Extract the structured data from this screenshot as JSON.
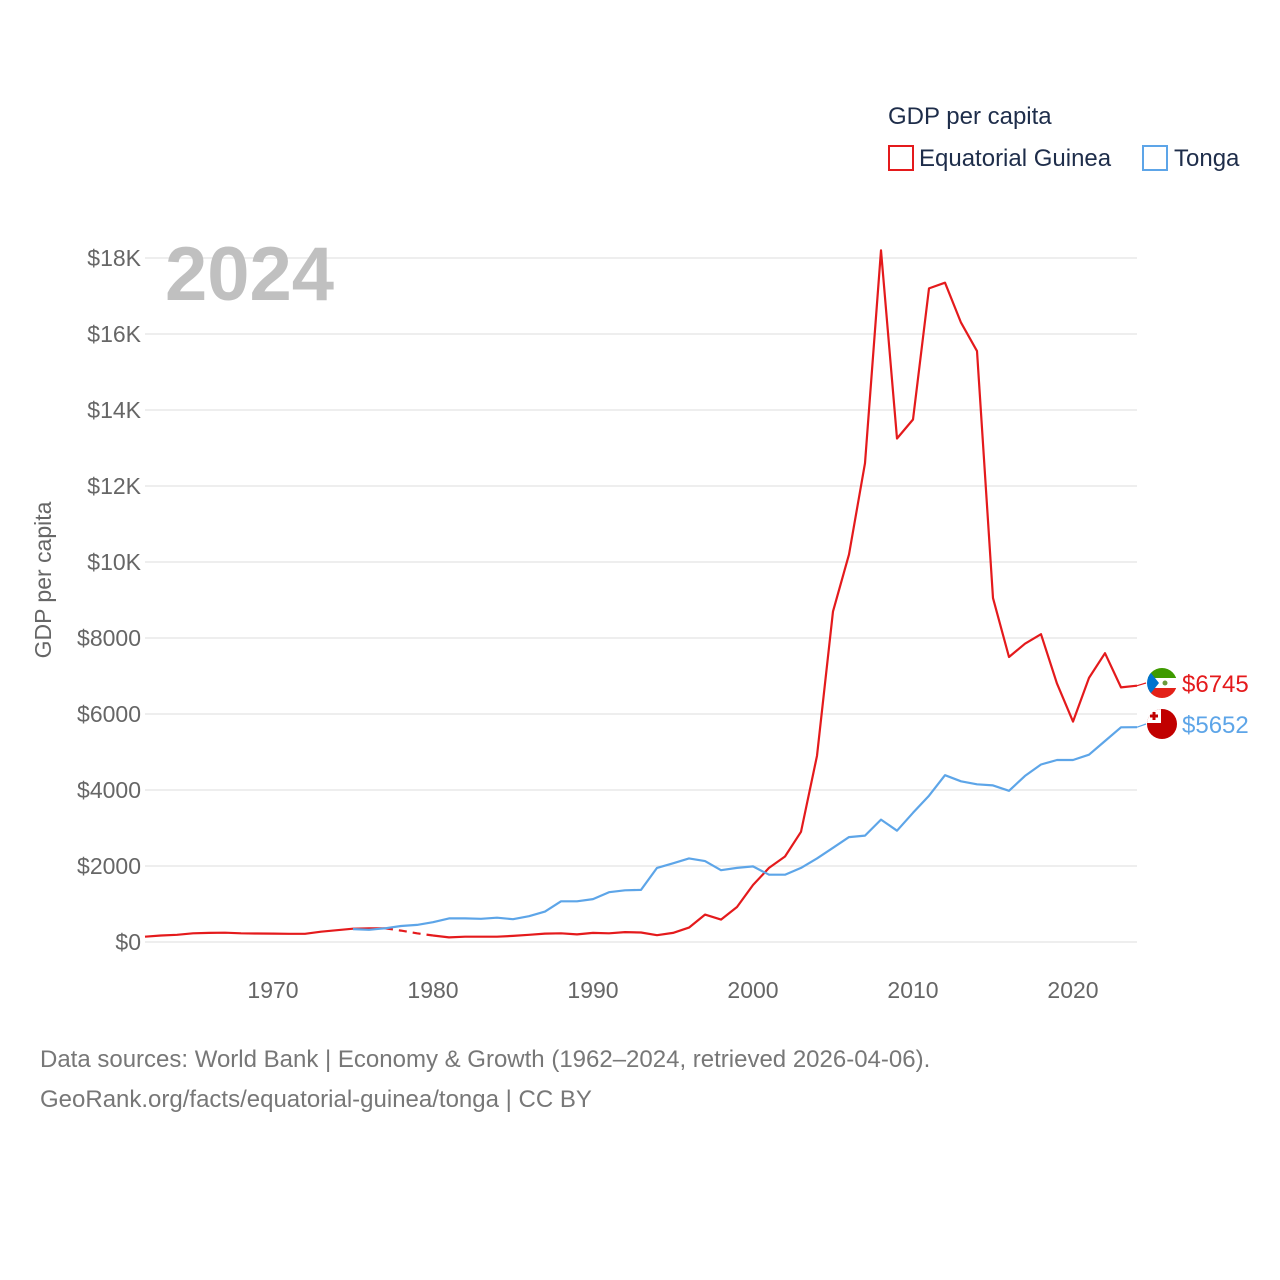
{
  "chart_data": {
    "type": "line",
    "title": "GDP per capita",
    "ylabel": "GDP per capita",
    "xlabel": "",
    "year_label": "2024",
    "xlim": [
      1962,
      2024
    ],
    "ylim": [
      0,
      18000
    ],
    "x_ticks": [
      {
        "value": 1970,
        "label": "1970"
      },
      {
        "value": 1980,
        "label": "1980"
      },
      {
        "value": 1990,
        "label": "1990"
      },
      {
        "value": 2000,
        "label": "2000"
      },
      {
        "value": 2010,
        "label": "2010"
      },
      {
        "value": 2020,
        "label": "2020"
      }
    ],
    "y_ticks": [
      {
        "value": 0,
        "label": "$0"
      },
      {
        "value": 2000,
        "label": "$2000"
      },
      {
        "value": 4000,
        "label": "$4000"
      },
      {
        "value": 6000,
        "label": "$6000"
      },
      {
        "value": 8000,
        "label": "$8000"
      },
      {
        "value": 10000,
        "label": "$10K"
      },
      {
        "value": 12000,
        "label": "$12K"
      },
      {
        "value": 14000,
        "label": "$14K"
      },
      {
        "value": 16000,
        "label": "$16K"
      },
      {
        "value": 18000,
        "label": "$18K"
      }
    ],
    "grid": true,
    "legend_position": "top-right",
    "series": [
      {
        "name": "Equatorial Guinea",
        "color": "#e41a1c",
        "end_label": "$6745",
        "flag_icon": "equatorial-guinea-flag-icon",
        "segments": [
          {
            "style": "solid",
            "points": [
              [
                1962,
                140
              ],
              [
                1963,
                170
              ],
              [
                1964,
                190
              ],
              [
                1965,
                230
              ],
              [
                1966,
                240
              ],
              [
                1967,
                245
              ],
              [
                1968,
                230
              ],
              [
                1969,
                225
              ],
              [
                1970,
                220
              ],
              [
                1971,
                215
              ],
              [
                1972,
                215
              ],
              [
                1973,
                270
              ],
              [
                1974,
                310
              ],
              [
                1975,
                350
              ],
              [
                1976,
                360
              ],
              [
                1977,
                360
              ]
            ]
          },
          {
            "style": "dashed",
            "points": [
              [
                1977,
                360
              ],
              [
                1978,
                300
              ],
              [
                1979,
                230
              ],
              [
                1980,
                170
              ]
            ]
          },
          {
            "style": "solid",
            "points": [
              [
                1980,
                170
              ],
              [
                1981,
                120
              ],
              [
                1982,
                140
              ],
              [
                1983,
                140
              ],
              [
                1984,
                140
              ],
              [
                1985,
                160
              ],
              [
                1986,
                190
              ],
              [
                1987,
                220
              ],
              [
                1988,
                230
              ],
              [
                1989,
                200
              ],
              [
                1990,
                240
              ],
              [
                1991,
                230
              ],
              [
                1992,
                260
              ],
              [
                1993,
                250
              ],
              [
                1994,
                180
              ],
              [
                1995,
                240
              ],
              [
                1996,
                380
              ],
              [
                1997,
                720
              ],
              [
                1998,
                590
              ],
              [
                1999,
                920
              ],
              [
                2000,
                1500
              ],
              [
                2001,
                1950
              ],
              [
                2002,
                2250
              ],
              [
                2003,
                2900
              ],
              [
                2004,
                4900
              ],
              [
                2005,
                8700
              ],
              [
                2006,
                10200
              ],
              [
                2007,
                12600
              ],
              [
                2008,
                18200
              ],
              [
                2009,
                13250
              ],
              [
                2010,
                13750
              ],
              [
                2011,
                17200
              ],
              [
                2012,
                17350
              ],
              [
                2013,
                16300
              ],
              [
                2014,
                15550
              ],
              [
                2015,
                9050
              ],
              [
                2016,
                7500
              ],
              [
                2017,
                7850
              ],
              [
                2018,
                8100
              ],
              [
                2019,
                6800
              ],
              [
                2020,
                5800
              ],
              [
                2021,
                6950
              ],
              [
                2022,
                7600
              ],
              [
                2023,
                6700
              ],
              [
                2024,
                6745
              ]
            ]
          }
        ]
      },
      {
        "name": "Tonga",
        "color": "#5da5e8",
        "end_label": "$5652",
        "flag_icon": "tonga-flag-icon",
        "segments": [
          {
            "style": "solid",
            "points": [
              [
                1975,
                340
              ],
              [
                1976,
                320
              ],
              [
                1977,
                360
              ],
              [
                1978,
                420
              ],
              [
                1979,
                450
              ],
              [
                1980,
                520
              ],
              [
                1981,
                620
              ],
              [
                1982,
                620
              ],
              [
                1983,
                610
              ],
              [
                1984,
                640
              ],
              [
                1985,
                600
              ],
              [
                1986,
                680
              ],
              [
                1987,
                800
              ],
              [
                1988,
                1070
              ],
              [
                1989,
                1070
              ],
              [
                1990,
                1130
              ],
              [
                1991,
                1310
              ],
              [
                1992,
                1360
              ],
              [
                1993,
                1370
              ],
              [
                1994,
                1950
              ],
              [
                1995,
                2070
              ],
              [
                1996,
                2200
              ],
              [
                1997,
                2130
              ],
              [
                1998,
                1890
              ],
              [
                1999,
                1950
              ],
              [
                2000,
                1990
              ],
              [
                2001,
                1770
              ],
              [
                2002,
                1770
              ],
              [
                2003,
                1950
              ],
              [
                2004,
                2200
              ],
              [
                2005,
                2480
              ],
              [
                2006,
                2760
              ],
              [
                2007,
                2800
              ],
              [
                2008,
                3220
              ],
              [
                2009,
                2930
              ],
              [
                2010,
                3400
              ],
              [
                2011,
                3850
              ],
              [
                2012,
                4390
              ],
              [
                2013,
                4230
              ],
              [
                2014,
                4150
              ],
              [
                2015,
                4120
              ],
              [
                2016,
                3980
              ],
              [
                2017,
                4370
              ],
              [
                2018,
                4670
              ],
              [
                2019,
                4790
              ],
              [
                2020,
                4790
              ],
              [
                2021,
                4930
              ],
              [
                2022,
                5290
              ],
              [
                2023,
                5650
              ],
              [
                2024,
                5652
              ]
            ]
          }
        ]
      }
    ]
  },
  "footer": {
    "line1": "Data sources: World Bank | Economy & Growth (1962–2024, retrieved 2026-04-06).",
    "line2": "GeoRank.org/facts/equatorial-guinea/tonga | CC BY"
  }
}
